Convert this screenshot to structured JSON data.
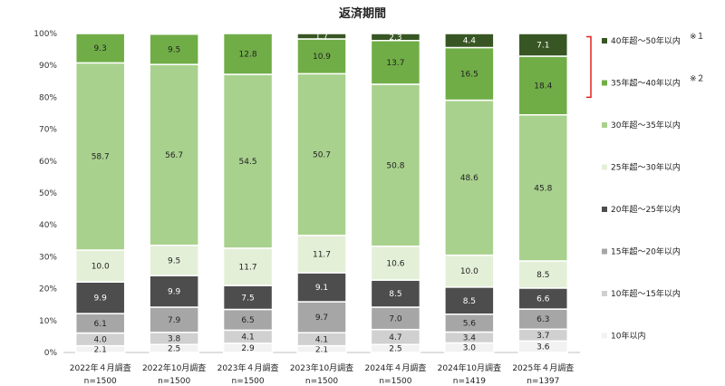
{
  "chart_data": {
    "type": "bar",
    "stacked": true,
    "title": "返済期間",
    "categories": [
      "2022年４月調査",
      "2022年10月調査",
      "2023年４月調査",
      "2023年10月調査",
      "2024年４月調査",
      "2024年10月調査",
      "2025年４月調査"
    ],
    "sample_sizes": [
      "n=1500",
      "n=1500",
      "n=1500",
      "n=1500",
      "n=1500",
      "n=1419",
      "n=1397"
    ],
    "ylim": [
      0,
      100
    ],
    "yticks": [
      "0%",
      "10%",
      "20%",
      "30%",
      "40%",
      "50%",
      "60%",
      "70%",
      "80%",
      "90%",
      "100%"
    ],
    "grid": false,
    "legend_position": "right",
    "series": [
      {
        "name": "10年以内",
        "color": "#f2f2f2",
        "values": [
          2.1,
          2.5,
          2.9,
          2.1,
          2.5,
          3.0,
          3.6
        ]
      },
      {
        "name": "10年超～15年以内",
        "color": "#d0d0d0",
        "values": [
          4.0,
          3.8,
          4.1,
          4.1,
          4.7,
          3.4,
          3.7
        ]
      },
      {
        "name": "15年超～20年以内",
        "color": "#a6a6a6",
        "values": [
          6.1,
          7.9,
          6.5,
          9.7,
          7.0,
          5.6,
          6.3
        ]
      },
      {
        "name": "20年超～25年以内",
        "color": "#4d4d4d",
        "values": [
          9.9,
          9.9,
          7.5,
          9.1,
          8.5,
          8.5,
          6.6
        ]
      },
      {
        "name": "25年超～30年以内",
        "color": "#e4efd8",
        "values": [
          10.0,
          9.5,
          11.7,
          11.7,
          10.6,
          10.0,
          8.5
        ]
      },
      {
        "name": "30年超～35年以内",
        "color": "#a9d18e",
        "values": [
          58.7,
          56.7,
          54.5,
          50.7,
          50.8,
          48.6,
          45.8
        ]
      },
      {
        "name": "35年超～40年以内",
        "color": "#70ad47",
        "values": [
          9.3,
          9.5,
          12.8,
          10.9,
          13.7,
          16.5,
          18.4
        ]
      },
      {
        "name": "40年超～50年以内",
        "color": "#375623",
        "values": [
          null,
          null,
          null,
          1.7,
          2.3,
          4.4,
          7.1
        ]
      }
    ],
    "legend_notes": {
      "40年超～50年以内": "※１",
      "35年超～40年以内": "※２"
    }
  }
}
